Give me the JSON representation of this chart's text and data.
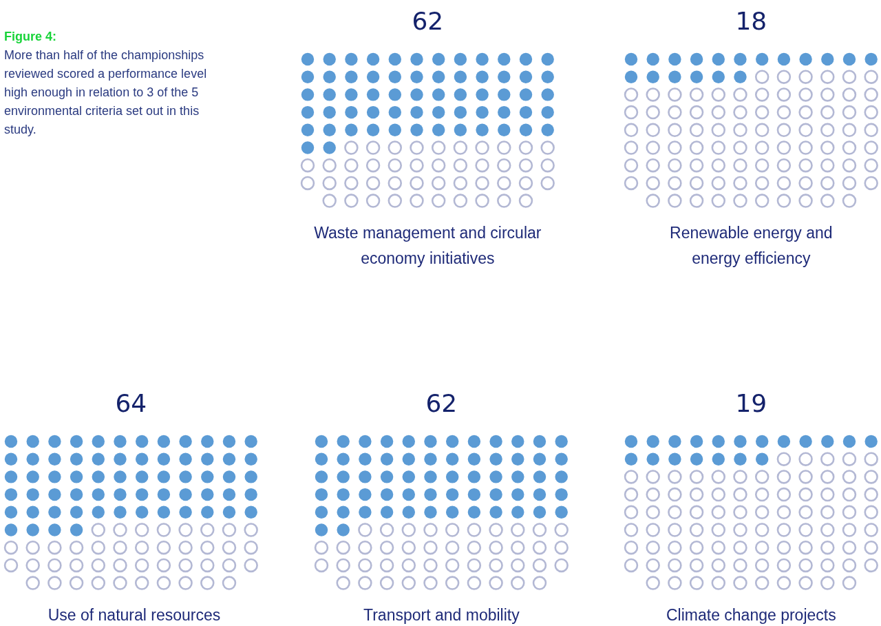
{
  "chart_data": [
    {
      "type": "other",
      "title": "Figure 4:",
      "subtitle": "More than half of the championships reviewed scored a performance level high enough in relation to 3 of the 5 environmental criteria set out in this study."
    },
    {
      "type": "other",
      "values": [
        62
      ],
      "data_labels": true,
      "color": "#5b9bd5",
      "xlabel": "Waste management and circular economy initiatives"
    },
    {
      "type": "other",
      "values": [
        18
      ],
      "data_labels": true,
      "color": "#5b9bd5",
      "xlabel": "Renewable energy and energy efficiency"
    },
    {
      "type": "other",
      "values": [
        64
      ],
      "data_labels": true,
      "color": "#5b9bd5",
      "xlabel": "Use of natural resources"
    },
    {
      "type": "other",
      "values": [
        62
      ],
      "data_labels": true,
      "color": "#5b9bd5",
      "xlabel": "Transport and mobility"
    },
    {
      "type": "other",
      "values": [
        19
      ],
      "data_labels": true,
      "color": "#5b9bd5",
      "xlabel": "Climate change projects"
    }
  ]
}
